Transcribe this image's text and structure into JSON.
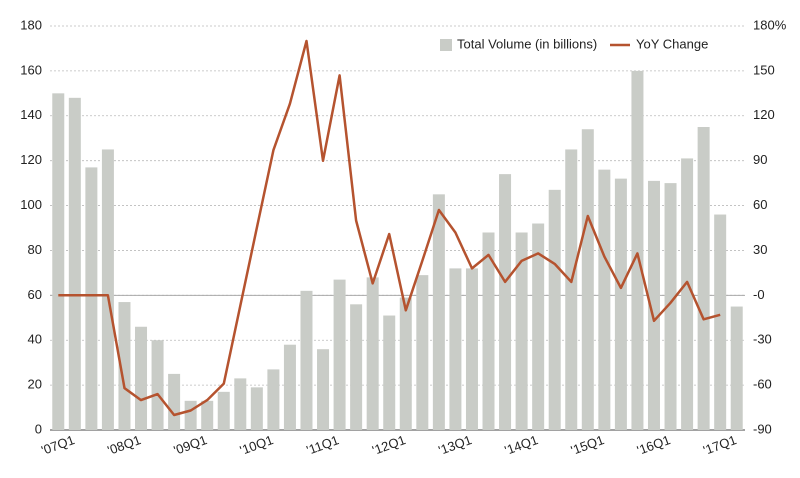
{
  "chart_data": {
    "type": "bar-line",
    "categories": [
      "'07Q1",
      null,
      null,
      null,
      "'08Q1",
      null,
      null,
      null,
      "'09Q1",
      null,
      null,
      null,
      "'10Q1",
      null,
      null,
      null,
      "'11Q1",
      null,
      null,
      null,
      "'12Q1",
      null,
      null,
      null,
      "'13Q1",
      null,
      null,
      null,
      "'14Q1",
      null,
      null,
      null,
      "'15Q1",
      null,
      null,
      null,
      "'16Q1",
      null,
      null,
      null,
      "'17Q1",
      null
    ],
    "series": [
      {
        "name": "Total Volume (in billions)",
        "type": "bar",
        "color": "#c9ccc7",
        "values": [
          150,
          148,
          117,
          125,
          57,
          46,
          40,
          25,
          13,
          13,
          17,
          23,
          19,
          27,
          38,
          62,
          36,
          67,
          56,
          68,
          51,
          59,
          69,
          105,
          72,
          72,
          88,
          114,
          88,
          92,
          107,
          125,
          134,
          116,
          112,
          160,
          111,
          110,
          121,
          135,
          96,
          55
        ]
      },
      {
        "name": "YoY Change",
        "type": "line",
        "axis": "y2",
        "color": "#b5532f",
        "values": [
          0,
          0,
          0,
          0,
          -62,
          -70,
          -66,
          -80,
          -77,
          -70,
          -59,
          -7,
          45,
          97,
          128,
          170,
          90,
          147,
          50,
          8,
          41,
          -10,
          23,
          57,
          42,
          18,
          27,
          9,
          23,
          28,
          21,
          9,
          53,
          26,
          5,
          28,
          -17,
          -5,
          9,
          -16,
          -13,
          null
        ]
      }
    ],
    "ylim": [
      0,
      180
    ],
    "yticks": [
      0,
      20,
      40,
      60,
      80,
      100,
      120,
      140,
      160,
      180
    ],
    "y2lim": [
      -90,
      180
    ],
    "y2ticks": [
      -90,
      -60,
      -30,
      {
        "value": 0,
        "label": "-0"
      },
      30,
      60,
      90,
      120,
      150,
      {
        "value": 180,
        "label": "180%"
      }
    ],
    "grid": true,
    "legend": "top-right"
  }
}
